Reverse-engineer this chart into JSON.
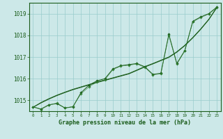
{
  "title": "Graphe pression niveau de la mer (hPa)",
  "hours": [
    0,
    1,
    2,
    3,
    4,
    5,
    6,
    7,
    8,
    9,
    10,
    11,
    12,
    13,
    14,
    15,
    16,
    17,
    18,
    19,
    20,
    21,
    22,
    23
  ],
  "ylim": [
    1014.5,
    1019.5
  ],
  "yticks": [
    1015,
    1016,
    1017,
    1018,
    1019
  ],
  "bg_color": "#cce8e8",
  "grid_color": "#99cccc",
  "dark_green": "#1a5c1a",
  "mid_green": "#2d7a2d",
  "series_main": [
    1014.7,
    1014.6,
    1014.8,
    1014.85,
    1014.65,
    1014.7,
    1015.35,
    1015.7,
    1015.9,
    1016.0,
    1016.45,
    1016.6,
    1016.65,
    1016.7,
    1016.55,
    1016.2,
    1016.25,
    1018.05,
    1016.7,
    1017.3,
    1018.65,
    1018.85,
    1019.0,
    1019.3
  ],
  "series_wave": [
    1014.7,
    1014.58,
    1014.78,
    1014.88,
    1014.65,
    1014.72,
    1015.3,
    1015.62,
    1015.85,
    1015.95,
    1016.42,
    1016.58,
    1016.62,
    1016.68,
    1016.52,
    1016.18,
    1016.22,
    1018.0,
    1016.67,
    1017.28,
    1018.62,
    1018.82,
    1018.98,
    1019.27
  ],
  "trend1": [
    1014.68,
    1014.88,
    1015.06,
    1015.22,
    1015.36,
    1015.49,
    1015.6,
    1015.71,
    1015.82,
    1015.92,
    1016.02,
    1016.12,
    1016.22,
    1016.38,
    1016.54,
    1016.68,
    1016.83,
    1016.98,
    1017.22,
    1017.52,
    1017.88,
    1018.28,
    1018.72,
    1019.27
  ],
  "trend2": [
    1014.68,
    1014.9,
    1015.08,
    1015.24,
    1015.38,
    1015.51,
    1015.62,
    1015.73,
    1015.84,
    1015.94,
    1016.04,
    1016.14,
    1016.24,
    1016.4,
    1016.56,
    1016.7,
    1016.85,
    1017.0,
    1017.24,
    1017.54,
    1017.9,
    1018.3,
    1018.74,
    1019.29
  ],
  "lw": 0.7,
  "ms": 1.8
}
